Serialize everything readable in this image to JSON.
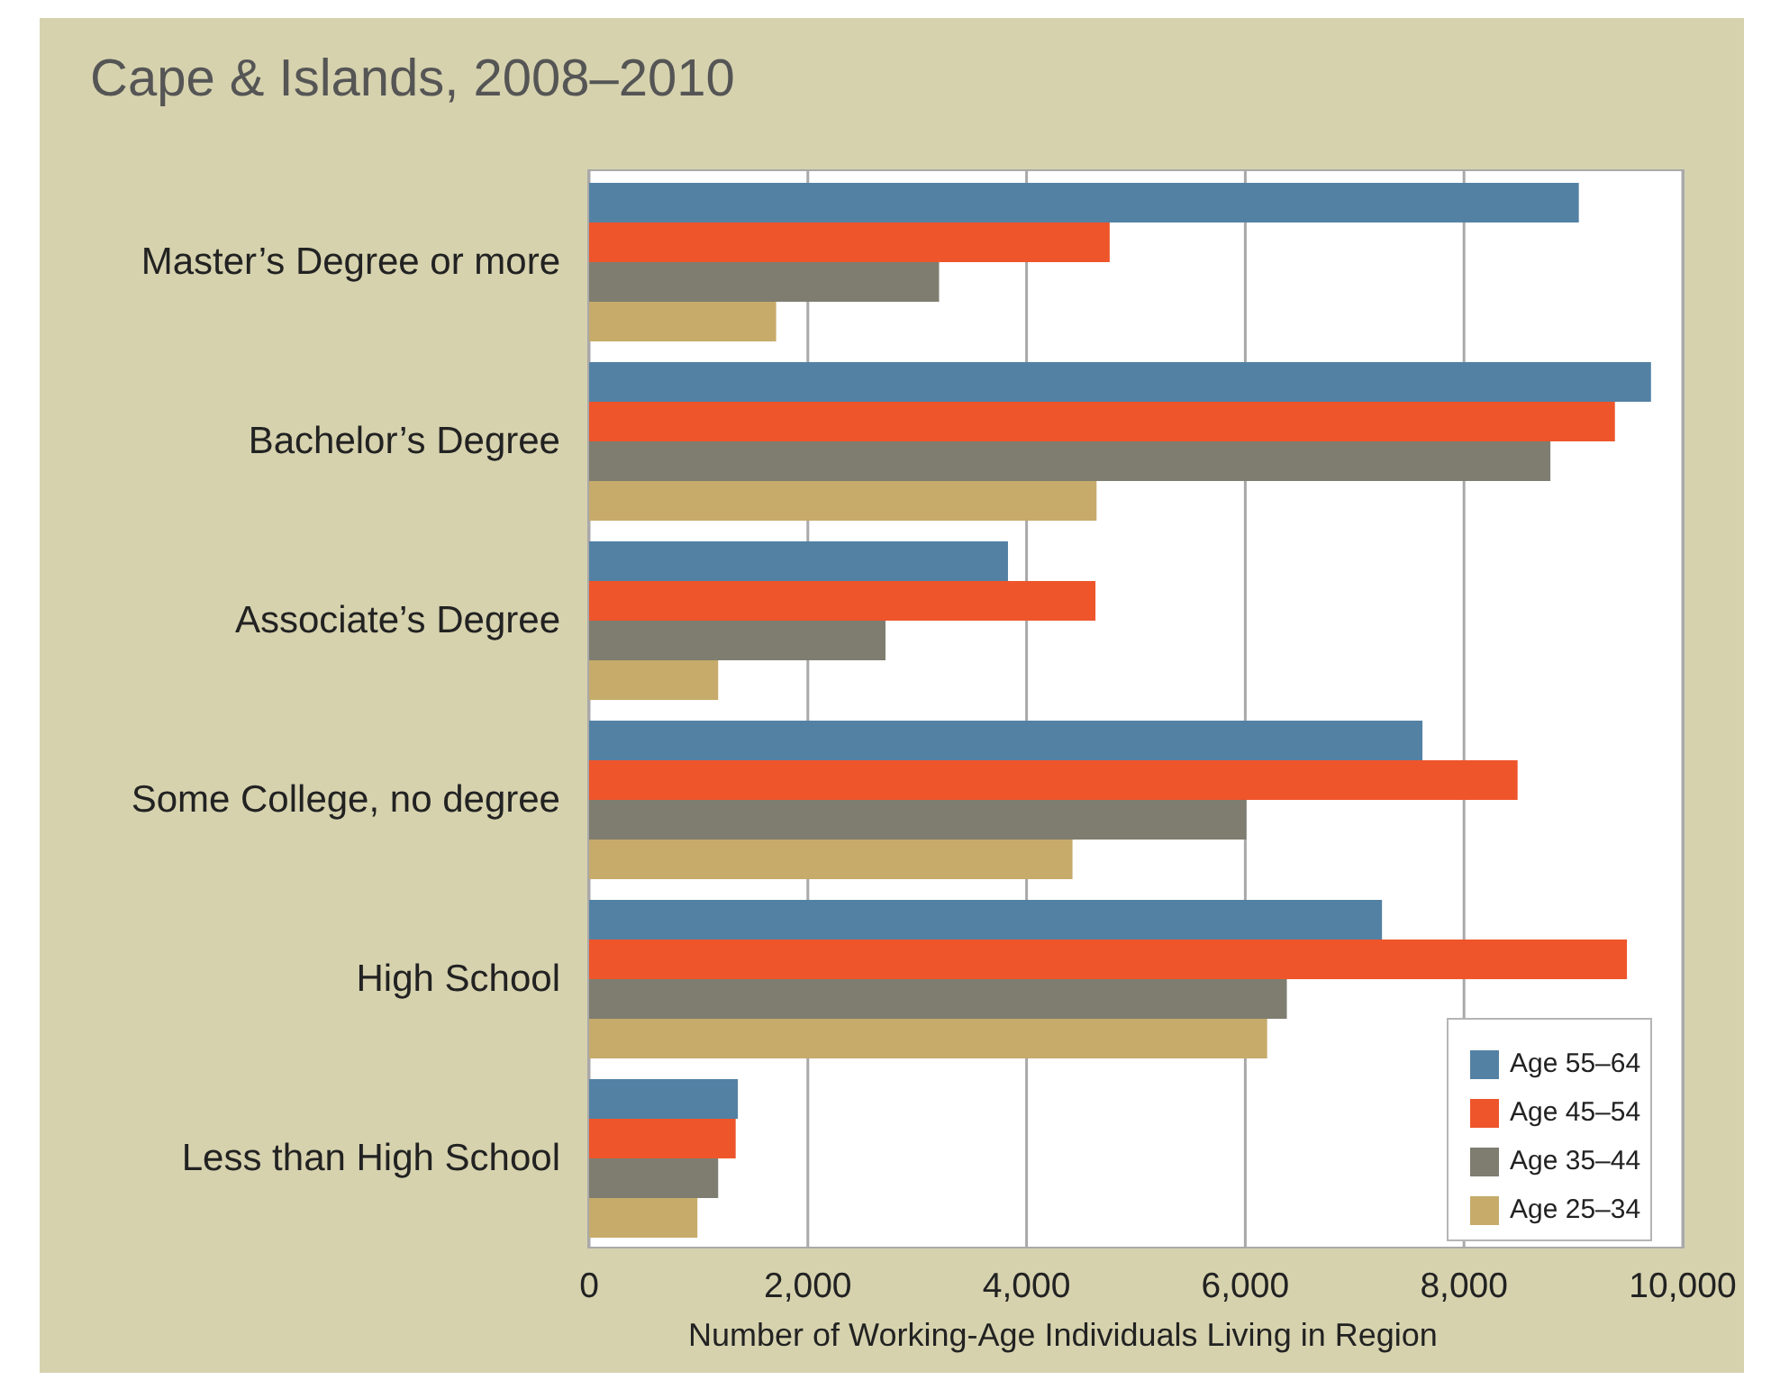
{
  "chart_data": {
    "type": "bar",
    "orientation": "horizontal",
    "title": "Cape & Islands, 2008–2010",
    "xlabel": "Number of Working-Age Individuals Living in Region",
    "categories": [
      "Master’s Degree or more",
      "Bachelor’s Degree",
      "Associate’s Degree",
      "Some College, no degree",
      "High School",
      "Less than High School"
    ],
    "series": [
      {
        "name": "Age 55–64",
        "color": "#5381a4",
        "values": [
          9050,
          9710,
          3830,
          7620,
          7250,
          1360
        ]
      },
      {
        "name": "Age 45–54",
        "color": "#ee552b",
        "values": [
          4760,
          9380,
          4630,
          8490,
          9490,
          1340
        ]
      },
      {
        "name": "Age 35–44",
        "color": "#7e7d70",
        "values": [
          3200,
          8790,
          2710,
          6010,
          6380,
          1180
        ]
      },
      {
        "name": "Age 25–34",
        "color": "#c6ab6a",
        "values": [
          1710,
          4640,
          1180,
          4420,
          6200,
          990
        ]
      }
    ],
    "xlim": [
      0,
      10000
    ],
    "xticks": [
      0,
      {
        "value": 2000,
        "label": "2,000"
      },
      {
        "value": 4000,
        "label": "4,000"
      },
      {
        "value": 6000,
        "label": "6,000"
      },
      {
        "value": 8000,
        "label": "8,000"
      },
      {
        "value": 10000,
        "label": "10,000"
      }
    ],
    "grid": "x",
    "legend": "bottom right"
  }
}
